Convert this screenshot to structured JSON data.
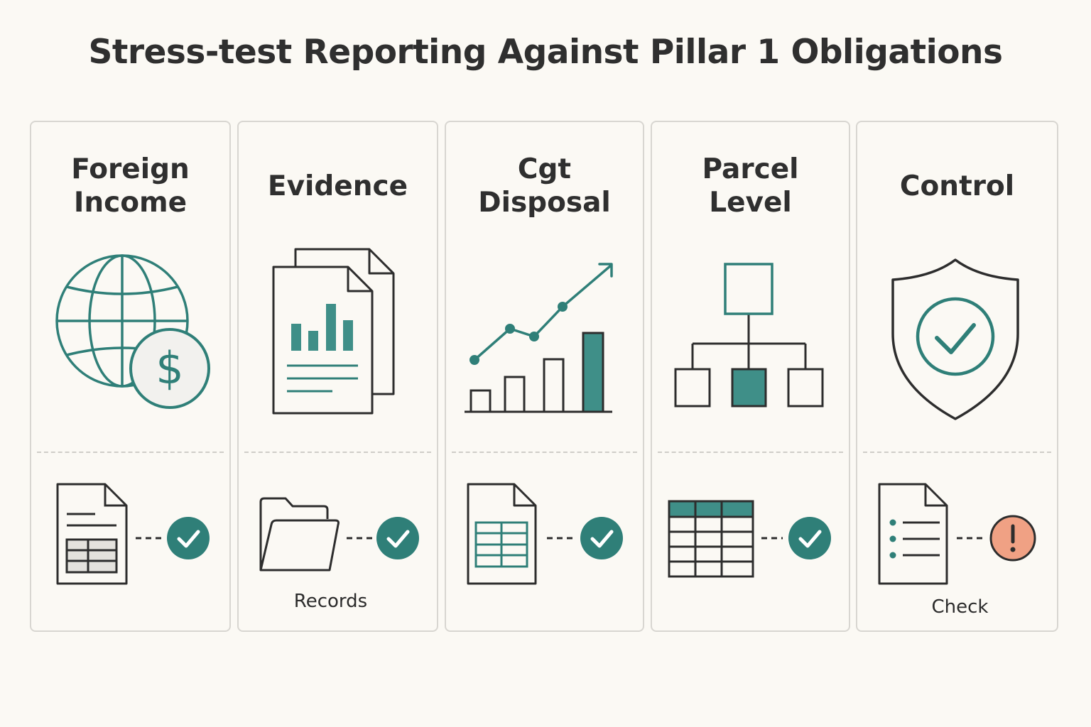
{
  "title": "Stress-test Reporting Against Pillar 1 Obligations",
  "colors": {
    "teal": "#2f7f78",
    "ink": "#2d2d2d",
    "alert": "#f0a184"
  },
  "cards": [
    {
      "title": "Foreign\nIncome",
      "icon": "globe-dollar-icon",
      "footer_icon": "spreadsheet-document-icon",
      "status": "check-icon",
      "caption": ""
    },
    {
      "title": "Evidence",
      "icon": "chart-documents-icon",
      "footer_icon": "folder-icon",
      "status": "check-icon",
      "caption": "Records"
    },
    {
      "title": "Cgt\nDisposal",
      "icon": "growth-chart-icon",
      "footer_icon": "table-document-icon",
      "status": "check-icon",
      "caption": ""
    },
    {
      "title": "Parcel\nLevel",
      "icon": "hierarchy-icon",
      "footer_icon": "grid-table-icon",
      "status": "check-icon",
      "caption": ""
    },
    {
      "title": "Control",
      "icon": "shield-check-icon",
      "footer_icon": "checklist-document-icon",
      "status": "alert-icon",
      "caption": "Check"
    }
  ]
}
